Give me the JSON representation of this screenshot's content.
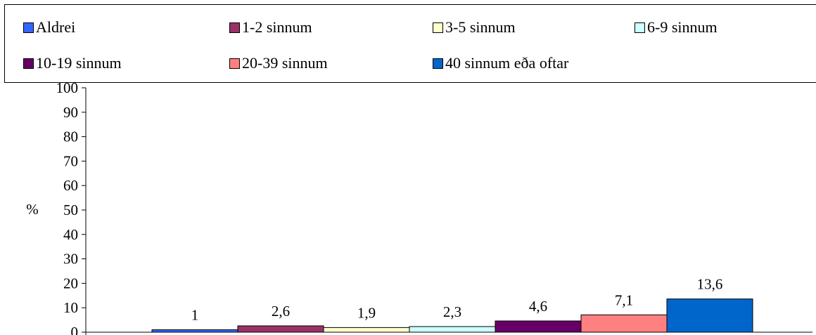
{
  "chart_data": {
    "type": "bar",
    "title": "",
    "xlabel": "",
    "ylabel": "%",
    "ylim": [
      0,
      100
    ],
    "yticks": [
      0,
      10,
      20,
      30,
      40,
      50,
      60,
      70,
      80,
      90,
      100
    ],
    "grid": false,
    "legend_position": "top",
    "series": [
      {
        "name": "Aldrei",
        "value": 1,
        "label": "1",
        "color": "#3366FF"
      },
      {
        "name": "1-2 sinnum",
        "value": 2.6,
        "label": "2,6",
        "color": "#993366"
      },
      {
        "name": "3-5 sinnum",
        "value": 1.9,
        "label": "1,9",
        "color": "#FFFFCC"
      },
      {
        "name": "6-9 sinnum",
        "value": 2.3,
        "label": "2,3",
        "color": "#CCFFFF"
      },
      {
        "name": "10-19 sinnum",
        "value": 4.6,
        "label": "4,6",
        "color": "#660066"
      },
      {
        "name": "20-39 sinnum",
        "value": 7.1,
        "label": "7,1",
        "color": "#FF8080"
      },
      {
        "name": "40 sinnum eða oftar",
        "value": 13.6,
        "label": "13,6",
        "color": "#0066CC"
      }
    ]
  }
}
